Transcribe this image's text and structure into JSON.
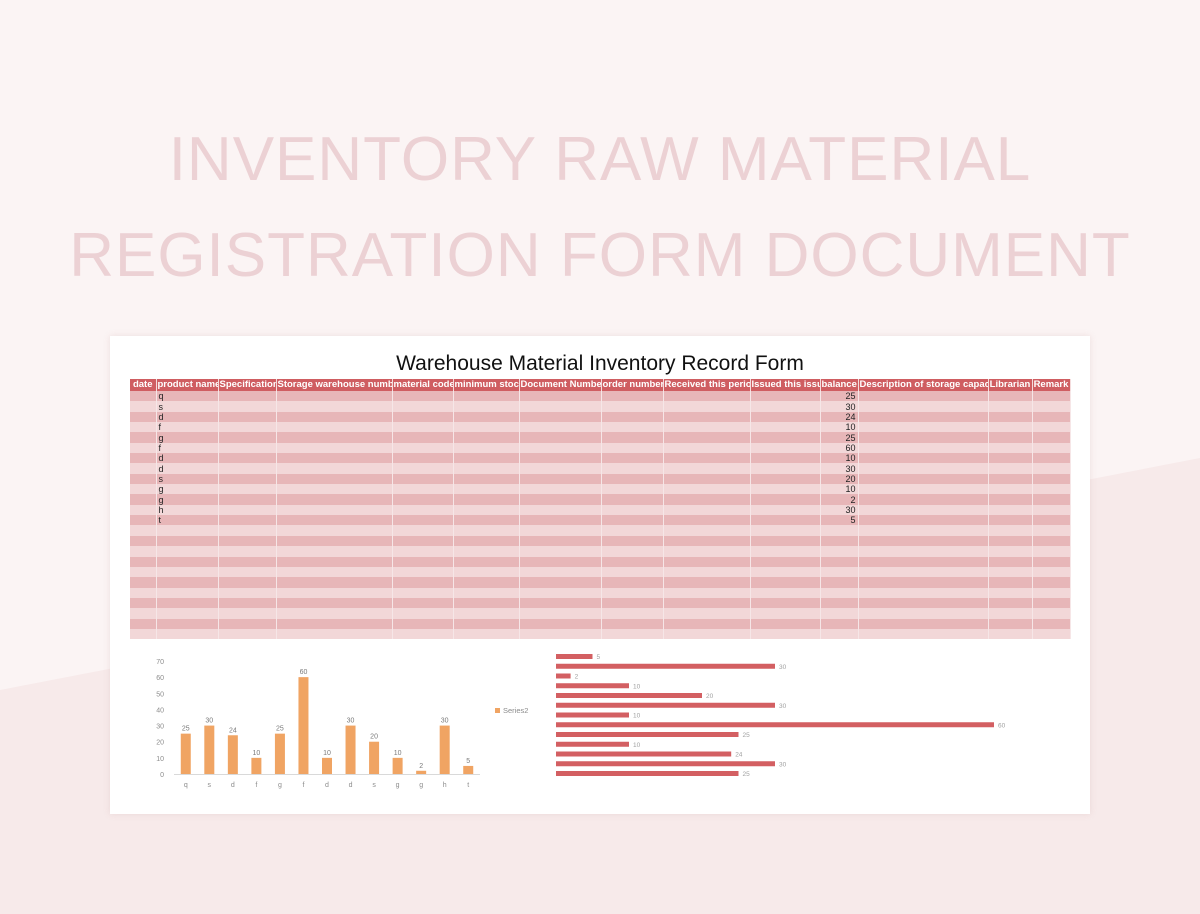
{
  "hero": {
    "line1": "INVENTORY RAW MATERIAL",
    "line2": "REGISTRATION FORM DOCUMENT"
  },
  "sheet": {
    "title": "Warehouse Material Inventory Record Form",
    "columns": [
      "date",
      "product name",
      "Specification",
      "Storage warehouse number",
      "material code",
      "minimum stock",
      "Document Number",
      "order number",
      "Received this period",
      "Issued this issue",
      "balance",
      "Description of storage capacity",
      "Librarian",
      "Remark"
    ],
    "rows": [
      {
        "product": "q",
        "balance": "25"
      },
      {
        "product": "s",
        "balance": "30"
      },
      {
        "product": "d",
        "balance": "24"
      },
      {
        "product": "f",
        "balance": "10"
      },
      {
        "product": "g",
        "balance": "25"
      },
      {
        "product": "f",
        "balance": "60"
      },
      {
        "product": "d",
        "balance": "10"
      },
      {
        "product": "d",
        "balance": "30"
      },
      {
        "product": "s",
        "balance": "20"
      },
      {
        "product": "g",
        "balance": "10"
      },
      {
        "product": "g",
        "balance": "2"
      },
      {
        "product": "h",
        "balance": "30"
      },
      {
        "product": "t",
        "balance": "5"
      }
    ],
    "empty_rows": 11
  },
  "chart_data": [
    {
      "type": "bar",
      "categories": [
        "q",
        "s",
        "d",
        "f",
        "g",
        "f",
        "d",
        "d",
        "s",
        "g",
        "g",
        "h",
        "t"
      ],
      "series": [
        {
          "name": "Series2",
          "values": [
            25,
            30,
            24,
            10,
            25,
            60,
            10,
            30,
            20,
            10,
            2,
            30,
            5
          ]
        }
      ],
      "ylim": [
        0,
        70
      ],
      "yticks": [
        0,
        10,
        20,
        30,
        40,
        50,
        60,
        70
      ],
      "legend": "right",
      "grid": false,
      "bar_color": "#f0a463"
    },
    {
      "type": "bar",
      "orientation": "horizontal",
      "values": [
        5,
        30,
        2,
        10,
        20,
        30,
        10,
        60,
        25,
        10,
        24,
        30,
        25
      ],
      "bar_color": "#d35f62",
      "grid": false
    }
  ]
}
